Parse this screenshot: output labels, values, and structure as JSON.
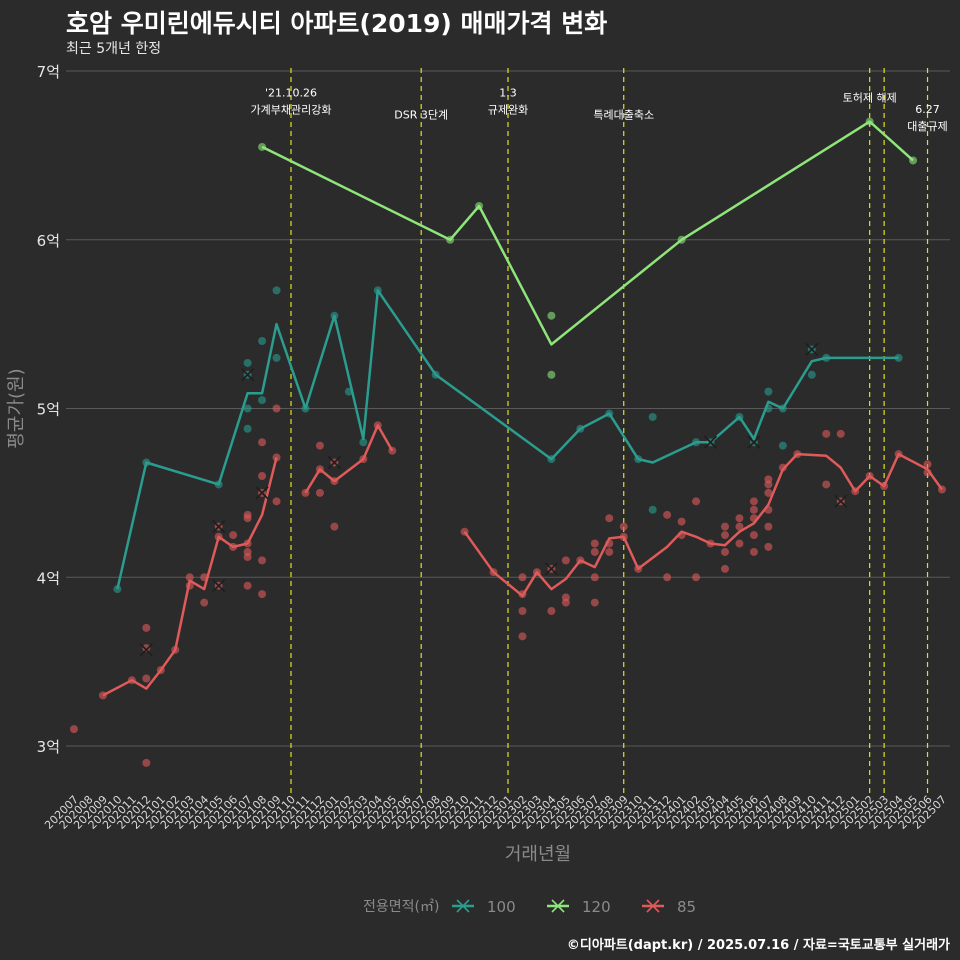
{
  "title": "호암 우미린에듀시티 아파트(2019) 매매가격 변화",
  "subtitle": "최근 5개년 한정",
  "caption": "©디아파트(dapt.kr) / 2025.07.16 / 자료=국토교통부 실거래가",
  "colors": {
    "s100": "#2a9d8f",
    "s120": "#8ee57a",
    "s85": "#e05a5a",
    "event": "#e0e020",
    "grid": "#5a5a5a",
    "background": "#2b2b2b"
  },
  "chart_data": {
    "type": "line",
    "xlabel": "거래년월",
    "ylabel": "평균가(원)",
    "ylim": [
      2.7,
      7.0
    ],
    "y_ticks": [
      {
        "value": 3,
        "label": "3억"
      },
      {
        "value": 4,
        "label": "4억"
      },
      {
        "value": 5,
        "label": "5억"
      },
      {
        "value": 6,
        "label": "6억"
      },
      {
        "value": 7,
        "label": "7억"
      }
    ],
    "categories": [
      "202007",
      "202008",
      "202009",
      "202010",
      "202011",
      "202012",
      "202101",
      "202102",
      "202103",
      "202104",
      "202105",
      "202106",
      "202107",
      "202108",
      "202109",
      "202110",
      "202111",
      "202112",
      "202201",
      "202202",
      "202203",
      "202204",
      "202205",
      "202206",
      "202207",
      "202208",
      "202209",
      "202210",
      "202211",
      "202212",
      "202301",
      "202302",
      "202303",
      "202304",
      "202305",
      "202306",
      "202307",
      "202308",
      "202309",
      "202310",
      "202311",
      "202312",
      "202401",
      "202402",
      "202403",
      "202404",
      "202405",
      "202406",
      "202407",
      "202408",
      "202409",
      "202410",
      "202411",
      "202412",
      "202501",
      "202502",
      "202503",
      "202504",
      "202505",
      "202506",
      "202507"
    ],
    "legend_title": "전용면적(㎡)",
    "legend_position": "bottom",
    "series": [
      {
        "name": "100",
        "color_key": "s100",
        "line": [
          [
            "202010",
            3.93
          ],
          [
            "202012",
            4.68
          ],
          [
            "202105",
            4.55
          ],
          [
            "202107",
            5.09
          ],
          [
            "202108",
            5.09
          ],
          [
            "202109",
            5.5
          ],
          [
            "202111",
            5.0
          ],
          [
            "202201",
            5.55
          ],
          [
            "202203",
            4.82
          ],
          [
            "202204",
            5.7
          ],
          [
            "202208",
            5.2
          ],
          [
            "202304",
            4.7
          ],
          [
            "202306",
            4.88
          ],
          [
            "202308",
            4.97
          ],
          [
            "202310",
            4.7
          ],
          [
            "202311",
            4.68
          ],
          [
            "202402",
            4.8
          ],
          [
            "202403",
            4.8
          ],
          [
            "202405",
            4.95
          ],
          [
            "202406",
            4.82
          ],
          [
            "202407",
            5.04
          ],
          [
            "202408",
            5.0
          ],
          [
            "202410",
            5.28
          ],
          [
            "202411",
            5.3
          ],
          [
            "202504",
            5.3
          ]
        ],
        "points": [
          [
            "202010",
            3.93
          ],
          [
            "202012",
            4.68
          ],
          [
            "202105",
            4.55
          ],
          [
            "202107",
            5.27
          ],
          [
            "202107",
            5.2
          ],
          [
            "202107",
            5.0
          ],
          [
            "202107",
            4.88
          ],
          [
            "202108",
            5.4
          ],
          [
            "202108",
            5.05
          ],
          [
            "202109",
            5.7
          ],
          [
            "202109",
            5.3
          ],
          [
            "202111",
            5.0
          ],
          [
            "202201",
            5.55
          ],
          [
            "202202",
            5.1
          ],
          [
            "202203",
            4.8
          ],
          [
            "202204",
            5.7
          ],
          [
            "202208",
            5.2
          ],
          [
            "202304",
            4.7
          ],
          [
            "202306",
            4.88
          ],
          [
            "202308",
            4.97
          ],
          [
            "202310",
            4.7
          ],
          [
            "202311",
            4.95
          ],
          [
            "202311",
            4.4
          ],
          [
            "202402",
            4.8
          ],
          [
            "202403",
            4.8
          ],
          [
            "202405",
            4.95
          ],
          [
            "202406",
            4.8
          ],
          [
            "202407",
            5.1
          ],
          [
            "202407",
            5.0
          ],
          [
            "202408",
            5.0
          ],
          [
            "202408",
            4.78
          ],
          [
            "202410",
            5.35
          ],
          [
            "202410",
            5.2
          ],
          [
            "202411",
            5.3
          ],
          [
            "202504",
            5.3
          ]
        ],
        "crosses": [
          [
            "202107",
            5.2
          ],
          [
            "202403",
            4.8
          ],
          [
            "202406",
            4.8
          ],
          [
            "202410",
            5.35
          ]
        ]
      },
      {
        "name": "120",
        "color_key": "s120",
        "line": [
          [
            "202108",
            6.55
          ],
          [
            "202209",
            6.0
          ],
          [
            "202211",
            6.2
          ],
          [
            "202304",
            5.38
          ],
          [
            "202401",
            6.0
          ],
          [
            "202502",
            6.7
          ],
          [
            "202505",
            6.47
          ]
        ],
        "points": [
          [
            "202108",
            6.55
          ],
          [
            "202209",
            6.0
          ],
          [
            "202211",
            6.2
          ],
          [
            "202304",
            5.55
          ],
          [
            "202304",
            5.2
          ],
          [
            "202401",
            6.0
          ],
          [
            "202502",
            6.7
          ],
          [
            "202505",
            6.47
          ]
        ],
        "crosses": []
      },
      {
        "name": "85",
        "color_key": "s85",
        "line": [
          [
            "202009",
            3.3
          ],
          [
            "202011",
            3.39
          ],
          [
            "202012",
            3.34
          ],
          [
            "202101",
            3.45
          ],
          [
            "202102",
            3.57
          ],
          [
            "202103",
            3.98
          ],
          [
            "202104",
            3.93
          ],
          [
            "202105",
            4.24
          ],
          [
            "202106",
            4.18
          ],
          [
            "202107",
            4.2
          ],
          [
            "202108",
            4.37
          ],
          [
            "202109",
            4.71
          ]
        ],
        "line2": [
          [
            "202111",
            4.5
          ],
          [
            "202112",
            4.64
          ],
          [
            "202201",
            4.57
          ],
          [
            "202203",
            4.7
          ],
          [
            "202204",
            4.9
          ],
          [
            "202205",
            4.75
          ]
        ],
        "line3": [
          [
            "202210",
            4.27
          ],
          [
            "202212",
            4.03
          ],
          [
            "202302",
            3.89
          ],
          [
            "202303",
            4.03
          ],
          [
            "202304",
            3.93
          ],
          [
            "202305",
            3.99
          ],
          [
            "202306",
            4.1
          ],
          [
            "202307",
            4.06
          ],
          [
            "202308",
            4.23
          ],
          [
            "202309",
            4.24
          ],
          [
            "202310",
            4.05
          ],
          [
            "202312",
            4.18
          ],
          [
            "202401",
            4.27
          ],
          [
            "202402",
            4.24
          ],
          [
            "202403",
            4.2
          ],
          [
            "202404",
            4.19
          ],
          [
            "202405",
            4.27
          ],
          [
            "202406",
            4.32
          ],
          [
            "202407",
            4.43
          ],
          [
            "202408",
            4.64
          ],
          [
            "202409",
            4.73
          ],
          [
            "202411",
            4.72
          ],
          [
            "202412",
            4.65
          ],
          [
            "202501",
            4.51
          ],
          [
            "202502",
            4.6
          ],
          [
            "202503",
            4.54
          ],
          [
            "202504",
            4.73
          ],
          [
            "202506",
            4.64
          ],
          [
            "202507",
            4.52
          ]
        ],
        "points": [
          [
            "202007",
            3.1
          ],
          [
            "202009",
            3.3
          ],
          [
            "202011",
            3.39
          ],
          [
            "202012",
            3.7
          ],
          [
            "202012",
            3.58
          ],
          [
            "202012",
            3.4
          ],
          [
            "202012",
            2.9
          ],
          [
            "202101",
            3.45
          ],
          [
            "202102",
            3.57
          ],
          [
            "202103",
            4.0
          ],
          [
            "202103",
            3.95
          ],
          [
            "202104",
            4.0
          ],
          [
            "202104",
            3.85
          ],
          [
            "202105",
            4.3
          ],
          [
            "202105",
            4.24
          ],
          [
            "202105",
            3.95
          ],
          [
            "202106",
            4.25
          ],
          [
            "202106",
            4.18
          ],
          [
            "202107",
            4.37
          ],
          [
            "202107",
            4.35
          ],
          [
            "202107",
            4.2
          ],
          [
            "202107",
            4.15
          ],
          [
            "202107",
            4.12
          ],
          [
            "202107",
            3.95
          ],
          [
            "202108",
            4.8
          ],
          [
            "202108",
            4.6
          ],
          [
            "202108",
            4.5
          ],
          [
            "202108",
            4.1
          ],
          [
            "202108",
            3.9
          ],
          [
            "202109",
            5.0
          ],
          [
            "202109",
            4.71
          ],
          [
            "202109",
            4.45
          ],
          [
            "202111",
            4.5
          ],
          [
            "202112",
            4.78
          ],
          [
            "202112",
            4.64
          ],
          [
            "202112",
            4.5
          ],
          [
            "202201",
            4.68
          ],
          [
            "202201",
            4.57
          ],
          [
            "202201",
            4.3
          ],
          [
            "202203",
            4.7
          ],
          [
            "202204",
            4.9
          ],
          [
            "202205",
            4.75
          ],
          [
            "202210",
            4.27
          ],
          [
            "202212",
            4.03
          ],
          [
            "202302",
            4.0
          ],
          [
            "202302",
            3.9
          ],
          [
            "202302",
            3.8
          ],
          [
            "202302",
            3.65
          ],
          [
            "202303",
            4.03
          ],
          [
            "202304",
            4.05
          ],
          [
            "202304",
            3.8
          ],
          [
            "202305",
            4.1
          ],
          [
            "202305",
            3.88
          ],
          [
            "202305",
            3.85
          ],
          [
            "202306",
            4.1
          ],
          [
            "202307",
            4.2
          ],
          [
            "202307",
            4.15
          ],
          [
            "202307",
            4.0
          ],
          [
            "202307",
            3.85
          ],
          [
            "202308",
            4.35
          ],
          [
            "202308",
            4.2
          ],
          [
            "202308",
            4.15
          ],
          [
            "202309",
            4.3
          ],
          [
            "202309",
            4.24
          ],
          [
            "202310",
            4.05
          ],
          [
            "202312",
            4.37
          ],
          [
            "202312",
            4.0
          ],
          [
            "202401",
            4.33
          ],
          [
            "202401",
            4.25
          ],
          [
            "202402",
            4.45
          ],
          [
            "202402",
            4.0
          ],
          [
            "202403",
            4.2
          ],
          [
            "202404",
            4.3
          ],
          [
            "202404",
            4.25
          ],
          [
            "202404",
            4.15
          ],
          [
            "202404",
            4.05
          ],
          [
            "202405",
            4.35
          ],
          [
            "202405",
            4.3
          ],
          [
            "202405",
            4.2
          ],
          [
            "202406",
            4.45
          ],
          [
            "202406",
            4.4
          ],
          [
            "202406",
            4.35
          ],
          [
            "202406",
            4.25
          ],
          [
            "202406",
            4.15
          ],
          [
            "202407",
            4.58
          ],
          [
            "202407",
            4.55
          ],
          [
            "202407",
            4.5
          ],
          [
            "202407",
            4.4
          ],
          [
            "202407",
            4.3
          ],
          [
            "202407",
            4.18
          ],
          [
            "202408",
            4.65
          ],
          [
            "202409",
            4.73
          ],
          [
            "202411",
            4.85
          ],
          [
            "202411",
            4.55
          ],
          [
            "202412",
            4.85
          ],
          [
            "202412",
            4.45
          ],
          [
            "202501",
            4.51
          ],
          [
            "202502",
            4.6
          ],
          [
            "202503",
            4.54
          ],
          [
            "202504",
            4.73
          ],
          [
            "202506",
            4.67
          ],
          [
            "202506",
            4.62
          ],
          [
            "202507",
            4.52
          ]
        ],
        "crosses": [
          [
            "202012",
            3.57
          ],
          [
            "202105",
            4.3
          ],
          [
            "202105",
            3.95
          ],
          [
            "202108",
            4.5
          ],
          [
            "202201",
            4.68
          ],
          [
            "202304",
            4.05
          ],
          [
            "202412",
            4.45
          ]
        ]
      }
    ],
    "events": [
      {
        "x": 15.0,
        "lines": [
          "'21.10.26",
          "가계부채관리강화"
        ],
        "label_y": 6.85
      },
      {
        "x": 24.0,
        "lines": [
          "DSR 3단계"
        ],
        "label_y": 6.72
      },
      {
        "x": 30.0,
        "lines": [
          "1.3",
          "규제완화"
        ],
        "label_y": 6.85
      },
      {
        "x": 38.0,
        "lines": [
          "특례대출축소"
        ],
        "label_y": 6.72
      },
      {
        "x": 55.0,
        "lines": [
          "토허제 해제"
        ],
        "label_y": 6.82
      },
      {
        "x": 56.0,
        "lines": [],
        "label_y": 6.8
      },
      {
        "x": 59.0,
        "lines": [
          "6.27",
          "대출규제"
        ],
        "label_y": 6.75
      }
    ]
  }
}
